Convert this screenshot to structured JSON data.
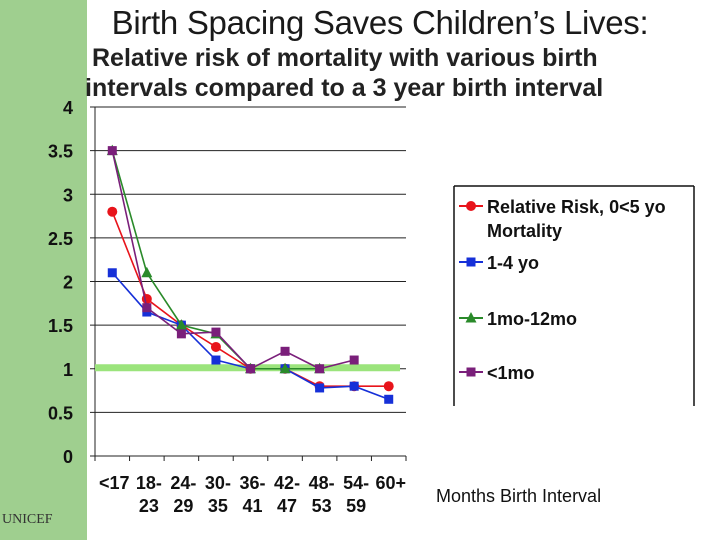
{
  "slide": {
    "title": "Birth Spacing Saves Children’s Lives:",
    "subtitle_line1": "Relative risk of mortality  with various birth",
    "subtitle_line2": "intervals compared to a 3 year birth interval",
    "x_note": "Months  Birth Interval",
    "watermark": "UNICEF"
  },
  "chart_data": {
    "type": "line",
    "categories": [
      [
        "<17",
        ""
      ],
      [
        "18-",
        "23"
      ],
      [
        "24-",
        "29"
      ],
      [
        "30-",
        "35"
      ],
      [
        "36-",
        "41"
      ],
      [
        "42-",
        "47"
      ],
      [
        "48-",
        "53"
      ],
      [
        "54-",
        "59"
      ],
      [
        "60+",
        ""
      ]
    ],
    "yticks": [
      "0",
      "0.5",
      "1",
      "1.5",
      "2",
      "2.5",
      "3",
      "3.5",
      "4"
    ],
    "ylim": [
      0,
      4
    ],
    "reference_line": {
      "y": 1,
      "color": "#9be47c"
    },
    "grid": true,
    "legend_position": "right",
    "series": [
      {
        "name": "Relative Risk, 0<5 yo Mortality",
        "legend_lines": [
          "Relative Risk, 0<5 yo",
          "Mortality"
        ],
        "color": "#e8141b",
        "marker": "circle",
        "values": [
          2.8,
          1.8,
          1.5,
          1.25,
          1.0,
          1.0,
          0.8,
          0.8,
          0.8
        ]
      },
      {
        "name": "1-4 yo",
        "legend_lines": [
          "1-4 yo"
        ],
        "color": "#1630d8",
        "marker": "square",
        "values": [
          2.1,
          1.65,
          1.5,
          1.1,
          1.0,
          1.0,
          0.78,
          0.8,
          0.65
        ]
      },
      {
        "name": "1mo-12mo",
        "legend_lines": [
          "1mo-12mo"
        ],
        "color": "#2a8a2a",
        "marker": "triangle",
        "values": [
          3.5,
          2.1,
          1.5,
          1.4,
          1.0,
          1.0,
          1.0,
          null,
          null
        ]
      },
      {
        "name": "<1mo",
        "legend_lines": [
          "<1mo"
        ],
        "color": "#7a1f7a",
        "marker": "square",
        "values": [
          3.5,
          1.7,
          1.4,
          1.42,
          1.0,
          1.2,
          1.0,
          1.1,
          null
        ]
      }
    ]
  }
}
